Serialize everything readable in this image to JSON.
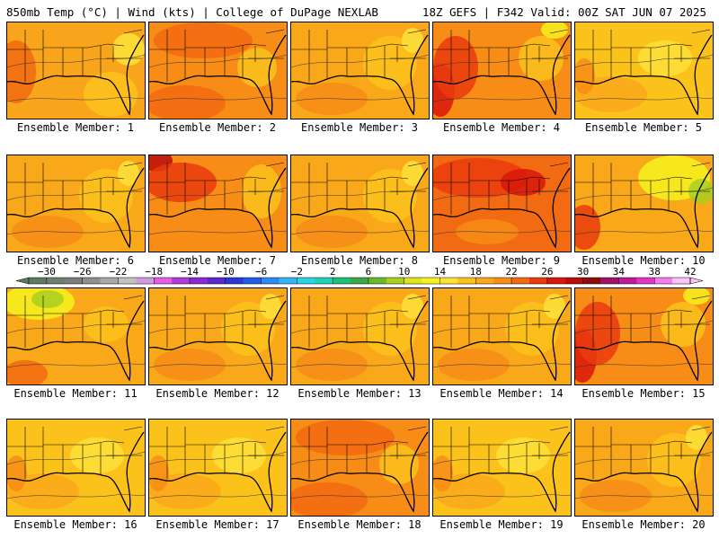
{
  "header": {
    "left": "850mb Temp (°C) | Wind (kts) | College of DuPage NEXLAB",
    "right": "18Z GEFS | F342 Valid: 00Z SAT JUN 07 2025"
  },
  "members": [
    {
      "caption": "Ensemble Member: 1",
      "tone": "warm-west"
    },
    {
      "caption": "Ensemble Member: 2",
      "tone": "hot"
    },
    {
      "caption": "Ensemble Member: 3",
      "tone": "moderate"
    },
    {
      "caption": "Ensemble Member: 4",
      "tone": "hot-west"
    },
    {
      "caption": "Ensemble Member: 5",
      "tone": "mild"
    },
    {
      "caption": "Ensemble Member: 6",
      "tone": "moderate"
    },
    {
      "caption": "Ensemble Member: 7",
      "tone": "hot-northwest"
    },
    {
      "caption": "Ensemble Member: 8",
      "tone": "moderate"
    },
    {
      "caption": "Ensemble Member: 9",
      "tone": "very-hot"
    },
    {
      "caption": "Ensemble Member: 10",
      "tone": "cool-northeast"
    },
    {
      "caption": "Ensemble Member: 11",
      "tone": "cool-north"
    },
    {
      "caption": "Ensemble Member: 12",
      "tone": "moderate"
    },
    {
      "caption": "Ensemble Member: 13",
      "tone": "moderate"
    },
    {
      "caption": "Ensemble Member: 14",
      "tone": "moderate"
    },
    {
      "caption": "Ensemble Member: 15",
      "tone": "hot-west"
    },
    {
      "caption": "Ensemble Member: 16",
      "tone": "mild"
    },
    {
      "caption": "Ensemble Member: 17",
      "tone": "mild"
    },
    {
      "caption": "Ensemble Member: 18",
      "tone": "hot"
    },
    {
      "caption": "Ensemble Member: 19",
      "tone": "mild"
    },
    {
      "caption": "Ensemble Member: 20",
      "tone": "moderate"
    }
  ],
  "colorbar": {
    "labels": [
      "−30",
      "−26",
      "−22",
      "−18",
      "−14",
      "−10",
      "−6",
      "−2",
      "2",
      "6",
      "10",
      "14",
      "18",
      "22",
      "26",
      "30",
      "34",
      "38",
      "42"
    ],
    "colors": [
      "#5f7a62",
      "#6f7f6f",
      "#7d7d7d",
      "#8f8f8f",
      "#a8a8a8",
      "#c2c2c2",
      "#d49ae0",
      "#e35de8",
      "#b33bd9",
      "#8a2ad6",
      "#5b29c9",
      "#2c35d6",
      "#1f5fe8",
      "#2a8cf0",
      "#32b5f2",
      "#2bd3e6",
      "#22d2b8",
      "#1fbf7a",
      "#3aa84a",
      "#6cb82c",
      "#a8cf22",
      "#e0e41c",
      "#f7f21f",
      "#fde23a",
      "#fcc21c",
      "#f9a81a",
      "#f78c16",
      "#f26a12",
      "#ea3b0e",
      "#d8160c",
      "#b80c0a",
      "#8f0b0b",
      "#a0126a",
      "#c01a9a",
      "#e036c6",
      "#f57bef",
      "#fbc3f7"
    ]
  }
}
